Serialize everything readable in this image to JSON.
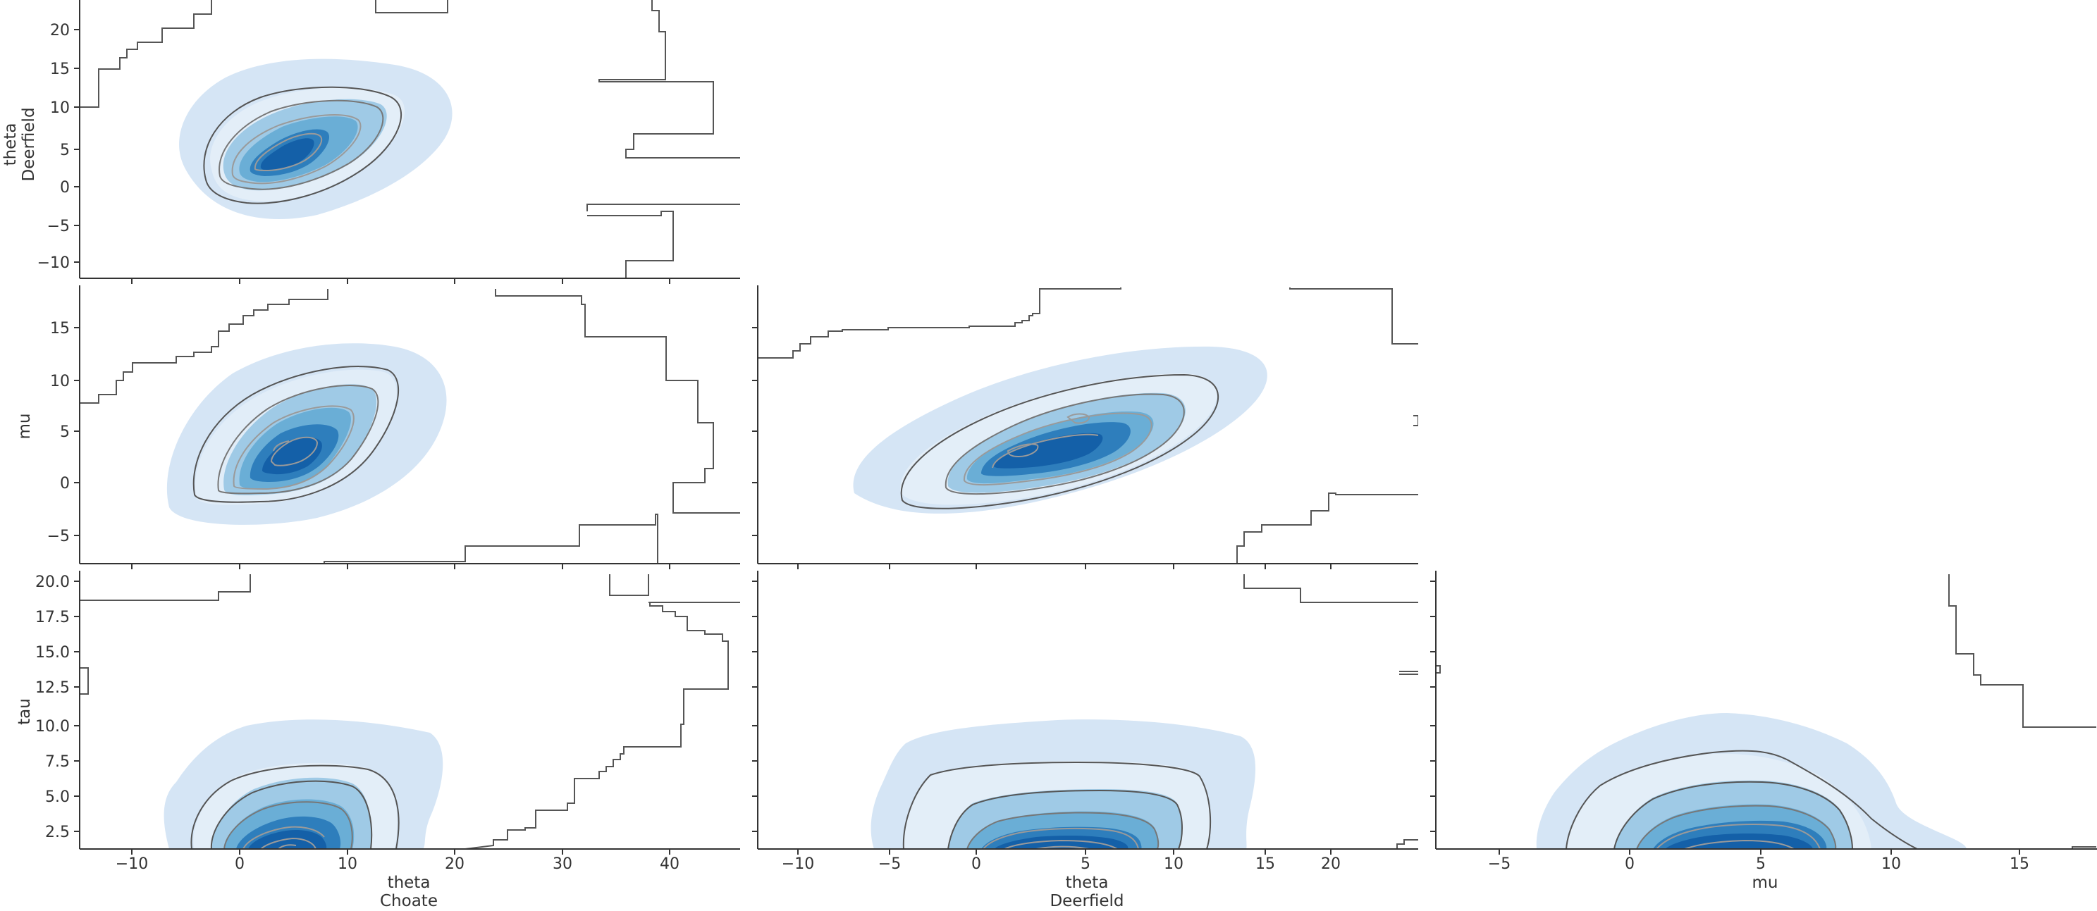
{
  "chart_data": {
    "type": "pair-kde",
    "grid": false,
    "colors": {
      "fill": [
        "#d5e5f5",
        "#9fcae6",
        "#6aaed6",
        "#2e7ebc",
        "#1460a8"
      ],
      "contour_dark": "#555555",
      "contour_light": "#9a9a9a",
      "axis": "#333333",
      "rug": "#555555"
    },
    "x_variables": [
      {
        "label_line1": "theta",
        "label_line2": "Choate",
        "ticks": [
          "−10",
          "0",
          "10",
          "20",
          "30",
          "40"
        ]
      },
      {
        "label_line1": "theta",
        "label_line2": "Deerfield",
        "ticks": [
          "−10",
          "−5",
          "0",
          "5",
          "10",
          "15",
          "20"
        ]
      },
      {
        "label_line1": "mu",
        "label_line2": "",
        "ticks": [
          "−5",
          "0",
          "5",
          "10",
          "15"
        ]
      }
    ],
    "y_variables": [
      {
        "label_line1": "theta",
        "label_line2": "Deerfield",
        "ticks": [
          "−10",
          "−5",
          "0",
          "5",
          "10",
          "15",
          "20"
        ]
      },
      {
        "label_line1": "mu",
        "label_line2": "",
        "ticks": [
          "−5",
          "0",
          "5",
          "10",
          "15"
        ]
      },
      {
        "label_line1": "tau",
        "label_line2": "",
        "ticks": [
          "2.5",
          "5.0",
          "7.5",
          "10.0",
          "12.5",
          "15.0",
          "17.5",
          "20.0"
        ]
      }
    ],
    "panels": [
      {
        "row": 0,
        "col": 0,
        "xvar": "theta Choate",
        "yvar": "theta Deerfield",
        "xlim": [
          -15,
          46.5
        ],
        "ylim": [
          -12.5,
          25
        ],
        "center": [
          6.3,
          5.0
        ],
        "rho": 0.45
      },
      {
        "row": 1,
        "col": 0,
        "xvar": "theta Choate",
        "yvar": "mu",
        "xlim": [
          -15,
          46.5
        ],
        "ylim": [
          -7.5,
          18
        ],
        "center": [
          6.5,
          5.3
        ],
        "rho": 0.5
      },
      {
        "row": 1,
        "col": 1,
        "xvar": "theta Deerfield",
        "yvar": "mu",
        "xlim": [
          -12.5,
          24.5
        ],
        "ylim": [
          -7.5,
          18
        ],
        "center": [
          5.5,
          5.2
        ],
        "rho": 0.68
      },
      {
        "row": 2,
        "col": 0,
        "xvar": "theta Choate",
        "yvar": "tau",
        "xlim": [
          -15,
          46.5
        ],
        "ylim": [
          0.8,
          20.5
        ],
        "center": [
          6,
          1.0
        ],
        "rho": 0.0
      },
      {
        "row": 2,
        "col": 1,
        "xvar": "theta Deerfield",
        "yvar": "tau",
        "xlim": [
          -12.5,
          24.5
        ],
        "ylim": [
          0.8,
          20.5
        ],
        "center": [
          5,
          1.0
        ],
        "rho": 0.0
      },
      {
        "row": 2,
        "col": 2,
        "xvar": "mu",
        "yvar": "tau",
        "xlim": [
          -8,
          17.5
        ],
        "ylim": [
          0.8,
          20.5
        ],
        "center": [
          4.5,
          1.0
        ],
        "rho": 0.0
      }
    ]
  }
}
